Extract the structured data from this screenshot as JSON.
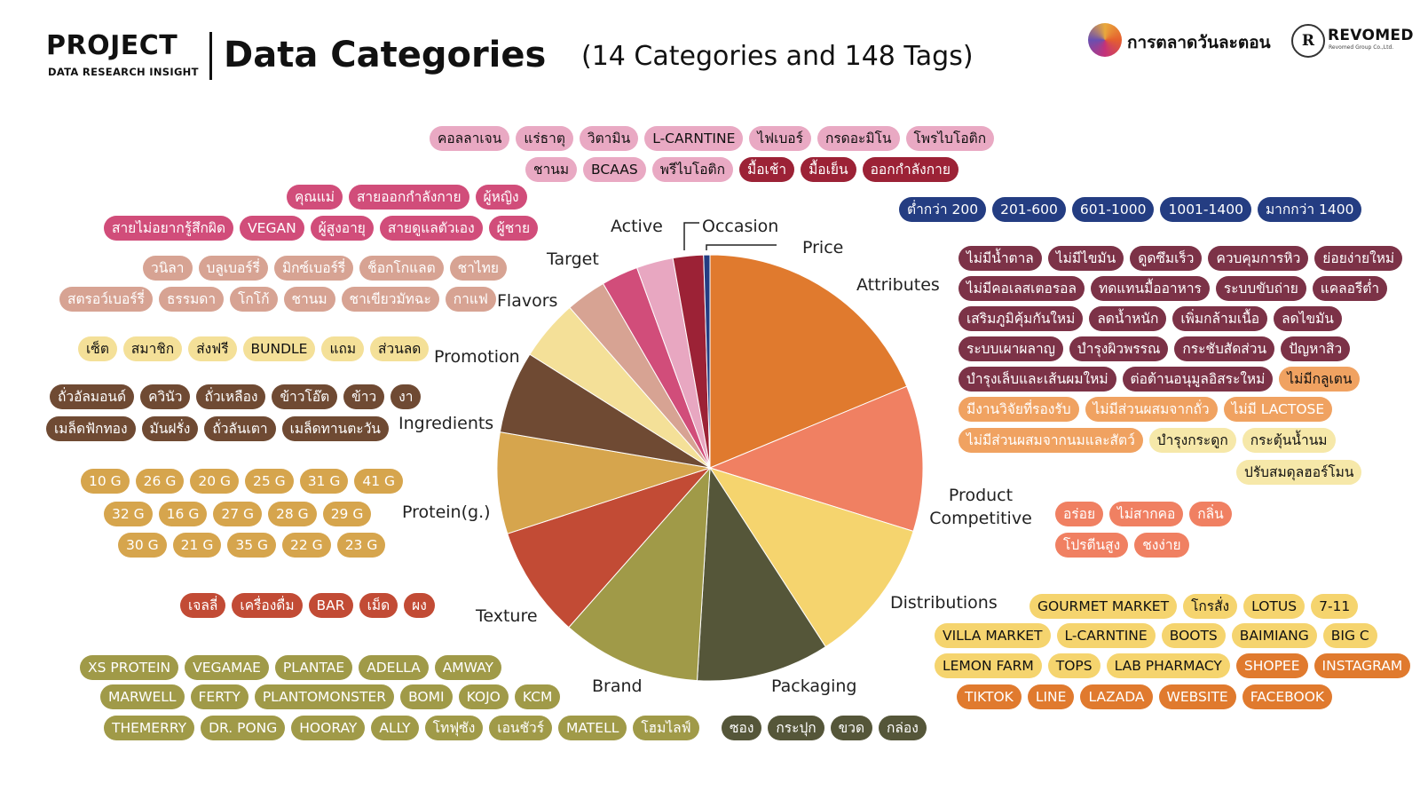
{
  "header": {
    "project": "PROJECT",
    "project_sub": "DATA RESEARCH INSIGHT",
    "title": "Data Categories",
    "subtitle": "(14 Categories and 148 Tags)",
    "logo1_text": "การตลาดวันละตอน",
    "logo2_text": "REVOMED",
    "logo2_sub": "Revomed Group Co.,Ltd."
  },
  "chart_data": {
    "type": "pie",
    "title": "",
    "slices": [
      {
        "label": "Attributes",
        "value": 19.5,
        "color": "#e07a2e"
      },
      {
        "label": "Product Competitive",
        "value": 11.5,
        "color": "#f08062"
      },
      {
        "label": "Distributions",
        "value": 11.5,
        "color": "#f5d46e"
      },
      {
        "label": "Packaging",
        "value": 10.5,
        "color": "#555639"
      },
      {
        "label": "Brand",
        "value": 11.0,
        "color": "#a09a48"
      },
      {
        "label": "Texture",
        "value": 8.8,
        "color": "#c24b35"
      },
      {
        "label": "Protein(g.)",
        "value": 8.0,
        "color": "#d6a54d"
      },
      {
        "label": "Ingredients",
        "value": 6.5,
        "color": "#6f4a33"
      },
      {
        "label": "Promotion",
        "value": 4.8,
        "color": "#f4e098"
      },
      {
        "label": "Flavors",
        "value": 3.2,
        "color": "#d7a393"
      },
      {
        "label": "Target",
        "value": 2.9,
        "color": "#d14d7a"
      },
      {
        "label": "Active",
        "value": 2.9,
        "color": "#e8a7c1"
      },
      {
        "label": "Occasion",
        "value": 2.4,
        "color": "#9c2236"
      },
      {
        "label": "Price",
        "value": 0.5,
        "color": "#243d82"
      }
    ]
  },
  "tags": {
    "active_1": [
      "คอลลาเจน",
      "แร่ธาตุ",
      "วิตามิน",
      "L-CARNTINE",
      "ไฟเบอร์",
      "กรดอะมิโน",
      "โพรไบโอติก"
    ],
    "active_2": [
      "ชานม",
      "BCAAS",
      "พรีไบโอติก"
    ],
    "occasion": [
      "มื้อเช้า",
      "มื้อเย็น",
      "ออกกำลังกาย"
    ],
    "target_1": [
      "คุณแม่",
      "สายออกกำลังกาย",
      "ผู้หญิง"
    ],
    "target_2": [
      "สายไม่อยากรู้สึกผิด",
      "VEGAN",
      "ผู้สูงอายุ",
      "สายดูแลตัวเอง",
      "ผู้ชาย"
    ],
    "flavors_1": [
      "วนิลา",
      "บลูเบอร์รี่",
      "มิกซ์เบอร์รี่",
      "ช็อกโกแลต",
      "ชาไทย"
    ],
    "flavors_2": [
      "สตรอว์เบอร์รี่",
      "ธรรมดา",
      "โกโก้",
      "ชานม",
      "ชาเขียวมัทฉะ",
      "กาแฟ"
    ],
    "promotion": [
      "เซ็ต",
      "สมาชิก",
      "ส่งฟรี",
      "BUNDLE",
      "แถม",
      "ส่วนลด"
    ],
    "ingredients_1": [
      "ถั่วอัลมอนด์",
      "ควินัว",
      "ถั่วเหลือง",
      "ข้าวโอ๊ต",
      "ข้าว",
      "งา"
    ],
    "ingredients_2": [
      "เมล็ดฟักทอง",
      "มันฝรั่ง",
      "ถั่วลันเตา",
      "เมล็ดทานตะวัน"
    ],
    "protein_1": [
      "10 G",
      "26 G",
      "20 G",
      "25 G",
      "31 G",
      "41 G"
    ],
    "protein_2": [
      "32 G",
      "16 G",
      "27 G",
      "28 G",
      "29 G"
    ],
    "protein_3": [
      "30 G",
      "21 G",
      "35 G",
      "22 G",
      "23 G"
    ],
    "texture": [
      "เจลลี่",
      "เครื่องดื่ม",
      "BAR",
      "เม็ด",
      "ผง"
    ],
    "brand_1": [
      "XS PROTEIN",
      "VEGAMAE",
      "PLANTAE",
      "ADELLA",
      "AMWAY"
    ],
    "brand_2": [
      "MARWELL",
      "FERTY",
      "PLANTOMONSTER",
      "BOMI",
      "KOJO",
      "KCM"
    ],
    "brand_3": [
      "THEMERRY",
      "DR. PONG",
      "HOORAY",
      "ALLY",
      "โทฟุซัง",
      "เอนชัวร์",
      "MATELL",
      "โฮมไลฟ์"
    ],
    "packaging": [
      "ซอง",
      "กระปุก",
      "ขวด",
      "กล่อง"
    ],
    "price": [
      "ต่ำกว่า 200",
      "201-600",
      "601-1000",
      "1001-1400",
      "มากกว่า 1400"
    ],
    "attr_1": [
      "ไม่มีน้ำตาล",
      "ไม่มีไขมัน",
      "ดูดซึมเร็ว",
      "ควบคุมการหิว",
      "ย่อยง่ายใหม่"
    ],
    "attr_2": [
      "ไม่มีคอเลสเตอรอล",
      "ทดแทนมื้ออาหาร",
      "ระบบขับถ่าย",
      "แคลอรีต่ำ"
    ],
    "attr_3": [
      "เสริมภูมิคุ้มกันใหม่",
      "ลดน้ำหนัก",
      "เพิ่มกล้ามเนื้อ",
      "ลดไขมัน"
    ],
    "attr_4": [
      "ระบบเผาผลาญ",
      "บำรุงผิวพรรณ",
      "กระชับสัดส่วน",
      "ปัญหาสิว"
    ],
    "attr_5": [
      "บำรุงเล็บและเส้นผมใหม่",
      "ต่อต้านอนุมูลอิสระใหม่",
      "ไม่มีกลูเตน"
    ],
    "attr_6": [
      "มีงานวิจัยที่รองรับ",
      "ไม่มีส่วนผสมจากถั่ว",
      "ไม่มี LACTOSE"
    ],
    "attr_7": [
      "ไม่มีส่วนผสมจากนมและสัตว์",
      "บำรุงกระดูก",
      "กระตุ้นน้ำนม"
    ],
    "attr_8": [
      "ปรับสมดุลฮอร์โมน"
    ],
    "comp_1": [
      "อร่อย",
      "ไม่สากคอ",
      "กลิ่น"
    ],
    "comp_2": [
      "โปรตีนสูง",
      "ชงง่าย"
    ],
    "dist_1": [
      "GOURMET MARKET",
      "โกรสั่ง",
      "LOTUS",
      "7-11"
    ],
    "dist_2": [
      "VILLA MARKET",
      "L-CARNTINE",
      "BOOTS",
      "BAIMIANG",
      "BIG C"
    ],
    "dist_3": [
      "LEMON FARM",
      "TOPS",
      "LAB PHARMACY",
      "SHOPEE",
      "INSTAGRAM"
    ],
    "dist_4": [
      "TIKTOK",
      "LINE",
      "LAZADA",
      "WEBSITE",
      "FACEBOOK"
    ]
  }
}
